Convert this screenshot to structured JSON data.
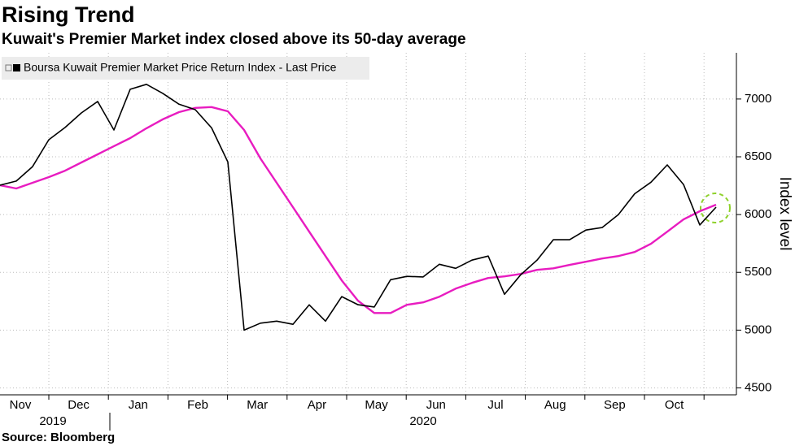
{
  "chart_data": {
    "type": "line",
    "title": "Rising Trend",
    "subtitle": "Kuwait's Premier Market index closed above its 50-day average",
    "source": "Source: Bloomberg",
    "ylabel": "Index level",
    "months": [
      "Nov",
      "Dec",
      "Jan",
      "Feb",
      "Mar",
      "Apr",
      "May",
      "Jun",
      "Jul",
      "Aug",
      "Sep",
      "Oct"
    ],
    "years": [
      "2019",
      "2020"
    ],
    "ylim": [
      4440,
      7400
    ],
    "yticks": [
      4500,
      5000,
      5500,
      6000,
      6500,
      7000
    ],
    "grid": true,
    "series": [
      {
        "name": "Boursa Kuwait Premier Market Price Return Index - Last Price",
        "color": "#000000",
        "values": [
          6254,
          6290,
          6415,
          6648,
          6754,
          6880,
          6979,
          6732,
          7084,
          7127,
          7049,
          6955,
          6908,
          6750,
          6455,
          5000,
          5060,
          5078,
          5050,
          5219,
          5078,
          5290,
          5220,
          5200,
          5436,
          5465,
          5460,
          5570,
          5535,
          5606,
          5641,
          5310,
          5480,
          5606,
          5782,
          5782,
          5866,
          5888,
          6000,
          6180,
          6280,
          6430,
          6260,
          5910,
          6064
        ]
      },
      {
        "color": "#e81cc0",
        "values": [
          6254,
          6226,
          6275,
          6324,
          6380,
          6451,
          6521,
          6592,
          6662,
          6747,
          6824,
          6887,
          6923,
          6930,
          6894,
          6732,
          6486,
          6275,
          6064,
          5852,
          5641,
          5430,
          5254,
          5148,
          5148,
          5219,
          5240,
          5289,
          5359,
          5409,
          5451,
          5465,
          5486,
          5521,
          5535,
          5564,
          5592,
          5620,
          5641,
          5676,
          5747,
          5852,
          5958,
          6029,
          6085
        ]
      }
    ]
  }
}
